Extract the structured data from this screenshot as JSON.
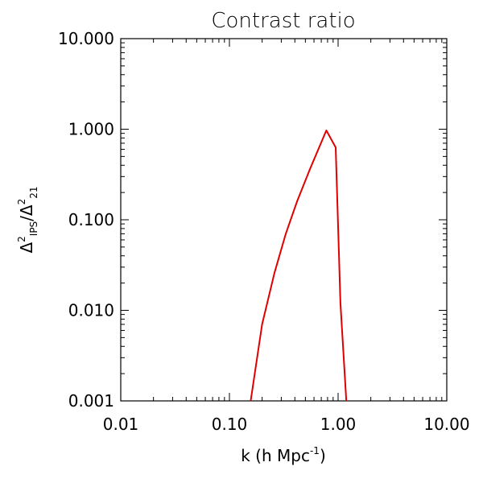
{
  "chart_data": {
    "type": "line",
    "title": "Contrast ratio",
    "xlabel_main": "k (h Mpc",
    "xlabel_sup": "-1",
    "xlabel_close": ")",
    "ylabel": {
      "delta_1": "Δ",
      "sup_1": "2",
      "sub_1": "IPS",
      "slash": "/",
      "delta_2": "Δ",
      "sup_2": "2",
      "sub_2": "21"
    },
    "x_scale": "log",
    "y_scale": "log",
    "xlim": [
      0.01,
      10
    ],
    "ylim": [
      0.001,
      10
    ],
    "x_ticks": [
      {
        "value": 0.01,
        "label": "0.01"
      },
      {
        "value": 0.1,
        "label": "0.10"
      },
      {
        "value": 1,
        "label": "1.00"
      },
      {
        "value": 10,
        "label": "10.00"
      }
    ],
    "y_ticks": [
      {
        "value": 0.001,
        "label": "0.001"
      },
      {
        "value": 0.01,
        "label": "0.010"
      },
      {
        "value": 0.1,
        "label": "0.100"
      },
      {
        "value": 1,
        "label": "1.000"
      },
      {
        "value": 10,
        "label": "10.000"
      }
    ],
    "grid": false,
    "series": [
      {
        "color": "#e00000",
        "x": [
          0.157,
          0.2,
          0.26,
          0.33,
          0.42,
          0.55,
          0.78,
          0.95,
          1.05,
          1.19
        ],
        "y": [
          0.001,
          0.007,
          0.026,
          0.07,
          0.16,
          0.36,
          0.97,
          0.63,
          0.012,
          0.001
        ]
      }
    ]
  }
}
